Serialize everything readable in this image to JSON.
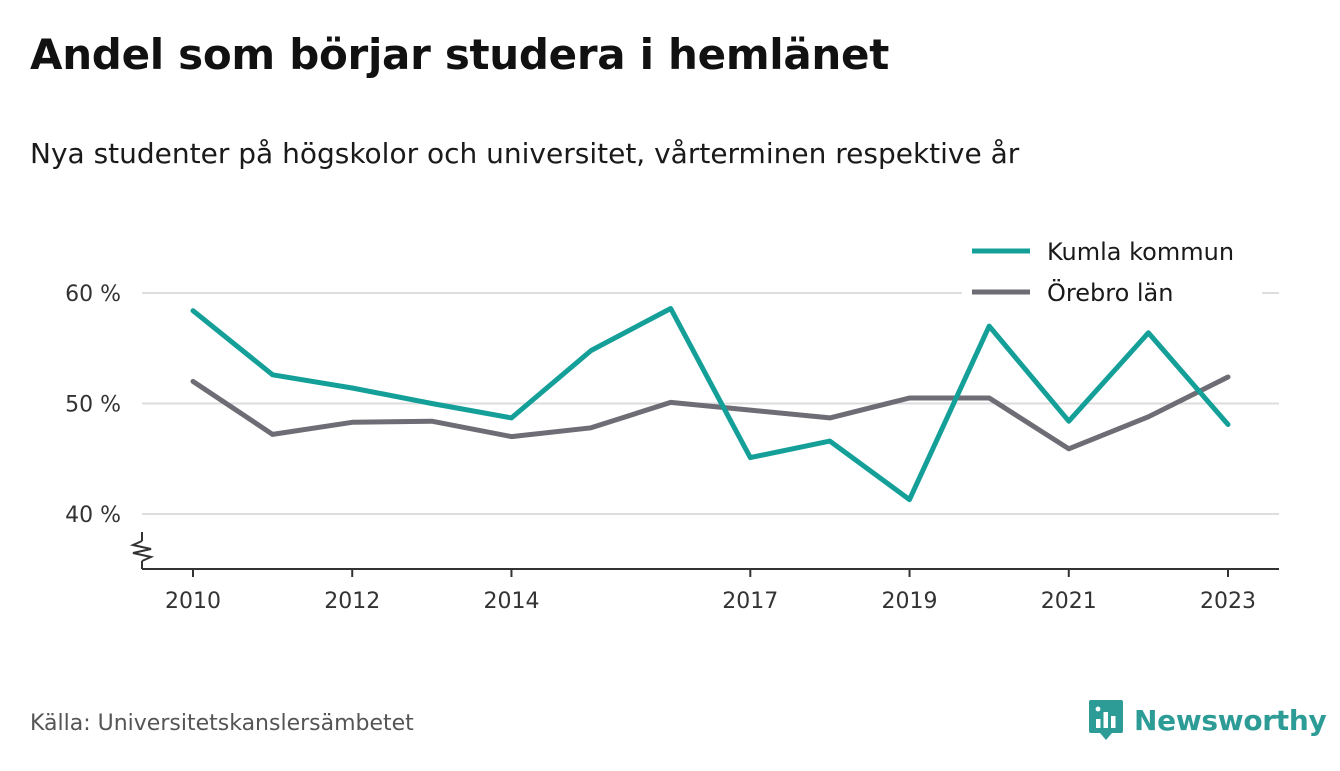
{
  "title": "Andel som börjar studera i hemlänet",
  "subtitle": "Nya studenter på högskolor och universitet, vårterminen respektive år",
  "source": "Källa: Universitetskanslersämbetet",
  "brand": "Newsworthy",
  "colors": {
    "kumla": "#14a098",
    "orebro": "#6e6d75",
    "grid": "#dddddd",
    "brand": "#2d9c96"
  },
  "chart_data": {
    "type": "line",
    "x": [
      2010,
      2011,
      2012,
      2013,
      2014,
      2015,
      2016,
      2017,
      2018,
      2019,
      2020,
      2021,
      2022,
      2023
    ],
    "x_ticks": [
      2010,
      2012,
      2014,
      2017,
      2019,
      2021,
      2023
    ],
    "x_tick_labels": [
      "2010",
      "2012",
      "2014",
      "2017",
      "2019",
      "2021",
      "2023"
    ],
    "y_ticks": [
      40,
      50,
      60
    ],
    "y_tick_labels": [
      "40 %",
      "50 %",
      "60 %"
    ],
    "ylim": [
      35,
      60
    ],
    "xlim": [
      2009.4,
      2023.7
    ],
    "y_axis_break": true,
    "grid": true,
    "legend_position": "top-right",
    "series": [
      {
        "name": "Kumla kommun",
        "color": "#14a098",
        "values": [
          58.4,
          52.6,
          51.4,
          50.0,
          48.7,
          54.8,
          58.6,
          45.1,
          46.6,
          41.3,
          57.0,
          48.4,
          56.4,
          48.1
        ]
      },
      {
        "name": "Örebro län",
        "color": "#6e6d75",
        "values": [
          52.0,
          47.2,
          48.3,
          48.4,
          47.0,
          47.8,
          50.1,
          49.4,
          48.7,
          50.5,
          50.5,
          45.9,
          48.8,
          52.4
        ]
      }
    ]
  }
}
